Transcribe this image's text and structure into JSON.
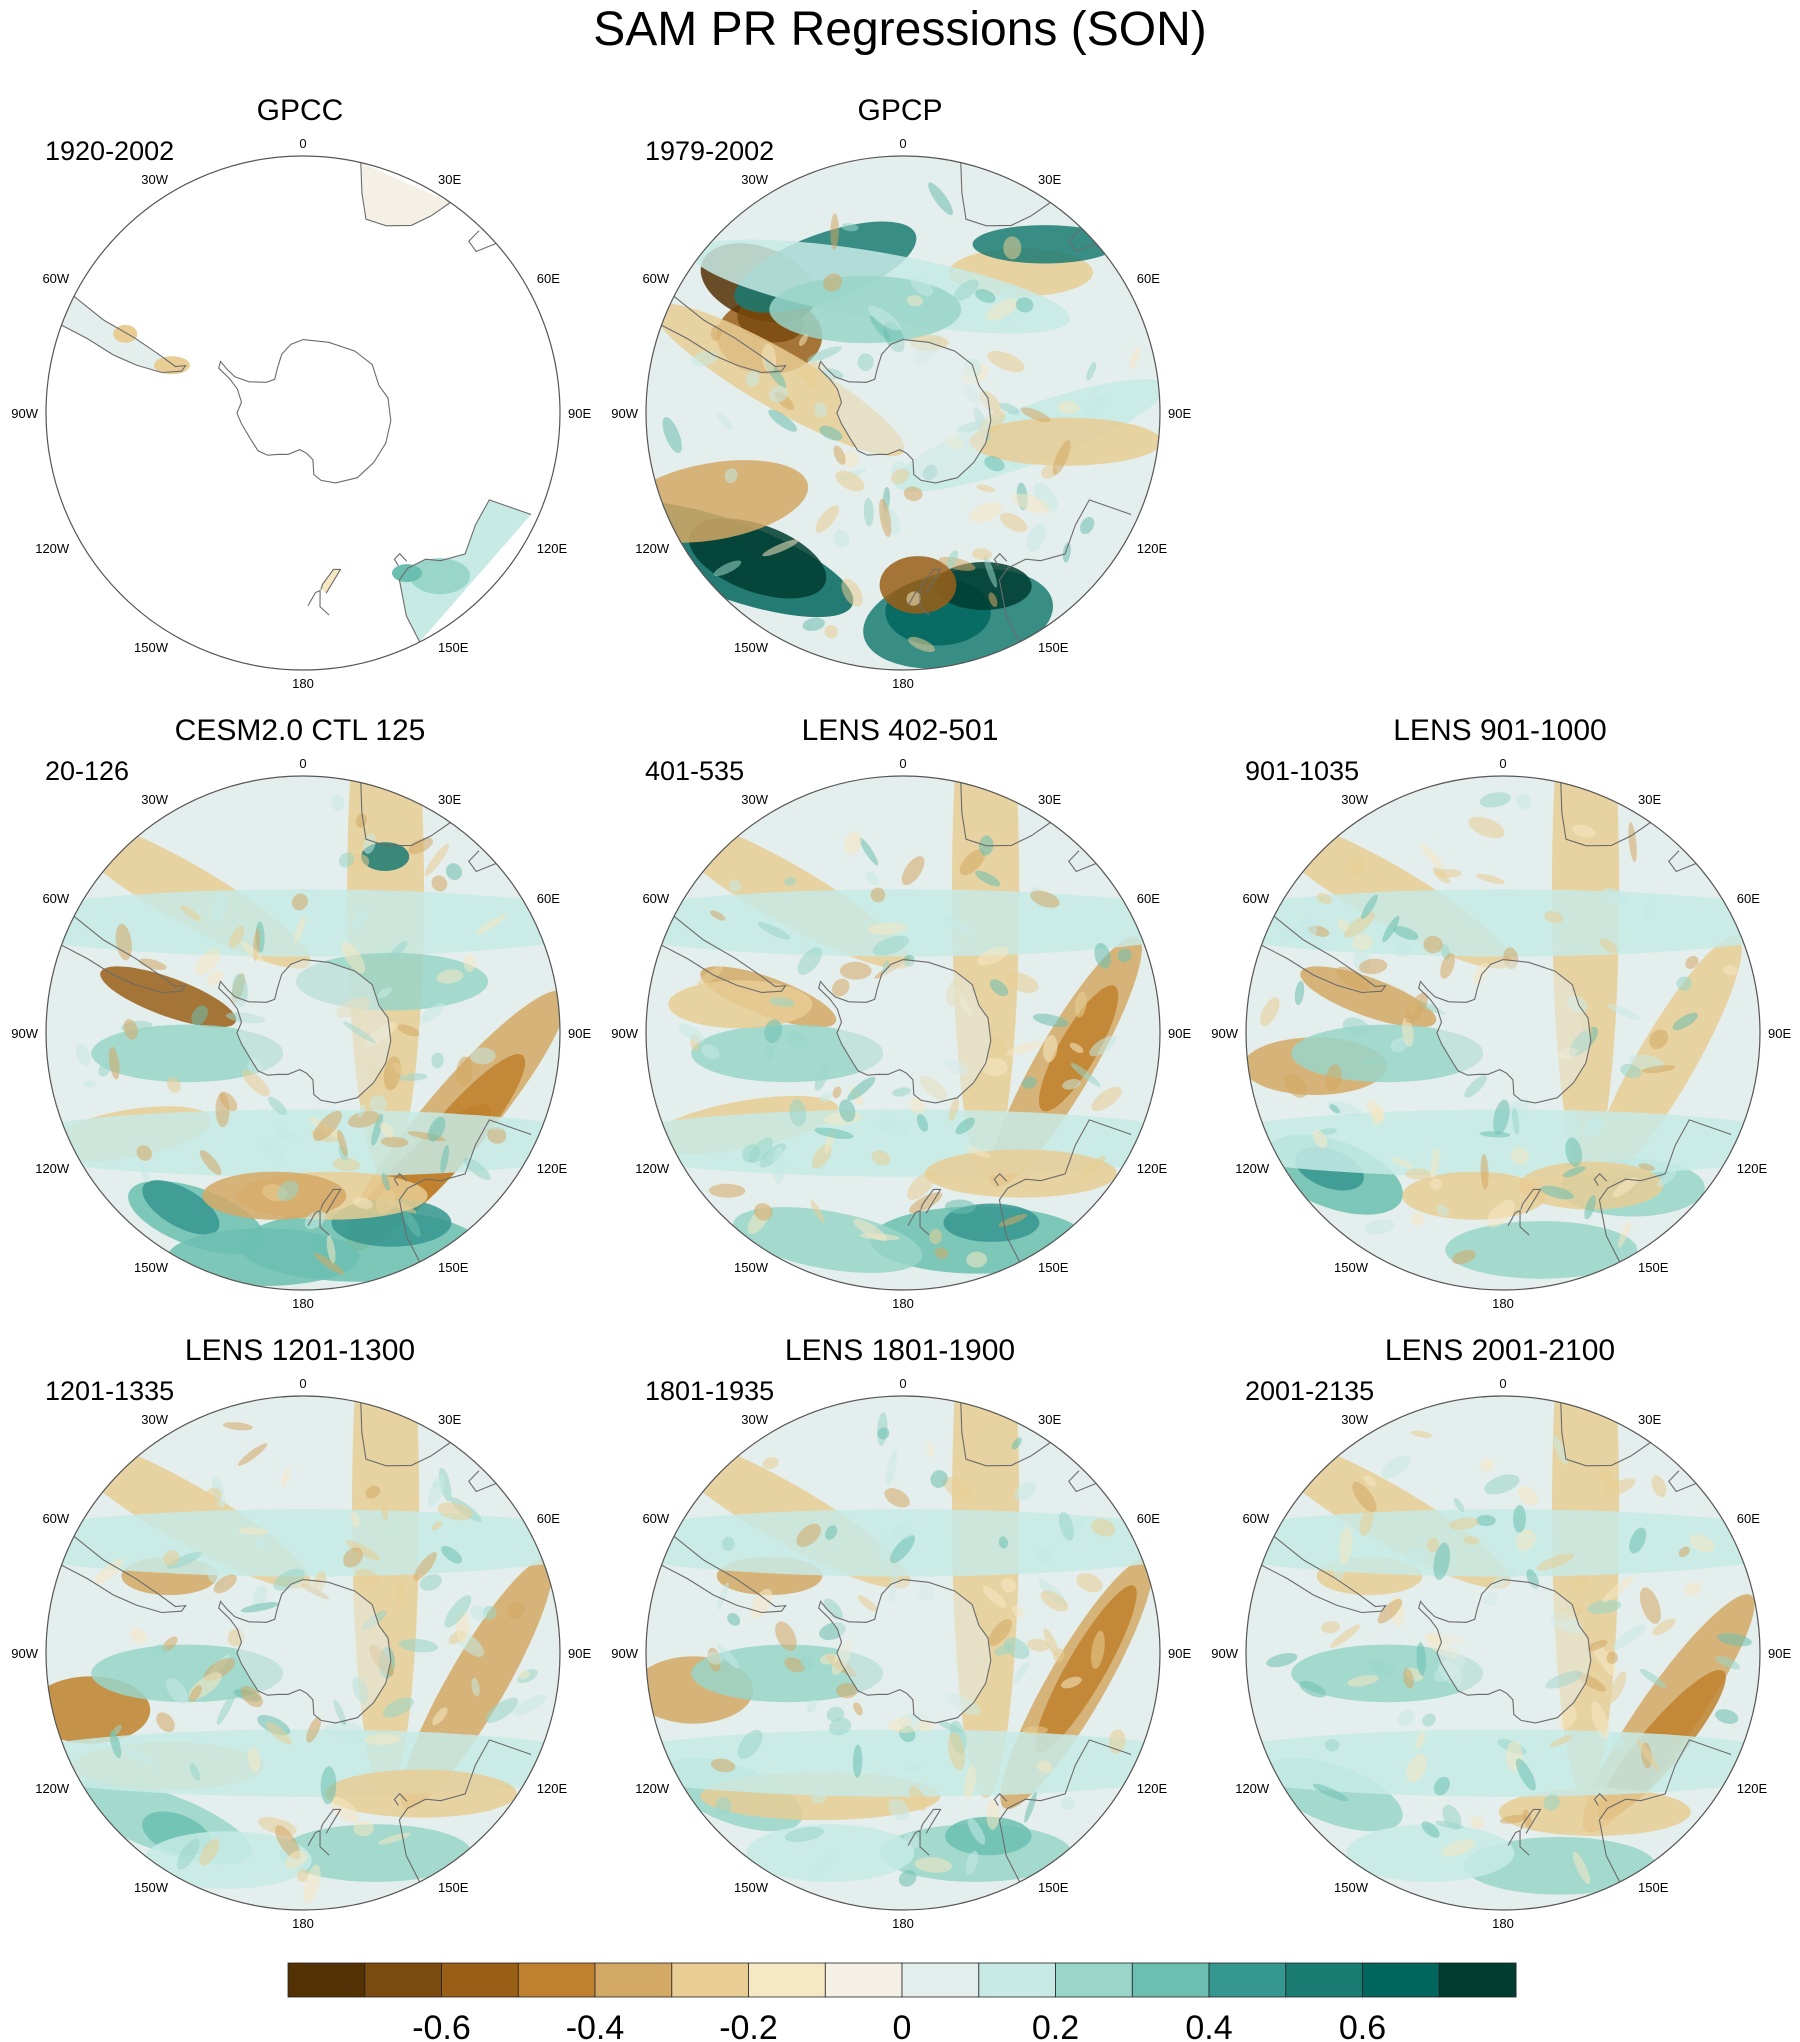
{
  "title": "SAM PR Regressions (SON)",
  "chart_data": {
    "type": "polar-contour-map",
    "projection": "south-polar-stereographic",
    "longitude_labels": [
      "0",
      "30E",
      "60E",
      "90E",
      "120E",
      "150E",
      "180",
      "150W",
      "120W",
      "90W",
      "60W",
      "30W"
    ],
    "panels": [
      {
        "id": "gpcc",
        "title": "GPCC",
        "period": "1920-2002",
        "land_only": true
      },
      {
        "id": "gpcp",
        "title": "GPCP",
        "period": "1979-2002",
        "land_only": false
      },
      {
        "id": "cesm",
        "title": "CESM2.0 CTL 125",
        "period": "20-126",
        "land_only": false
      },
      {
        "id": "lens402",
        "title": "LENS 402-501",
        "period": "401-535",
        "land_only": false
      },
      {
        "id": "lens901",
        "title": "LENS 901-1000",
        "period": "901-1035",
        "land_only": false
      },
      {
        "id": "lens1201",
        "title": "LENS 1201-1300",
        "period": "1201-1335",
        "land_only": false
      },
      {
        "id": "lens1801",
        "title": "LENS 1801-1900",
        "period": "1801-1935",
        "land_only": false
      },
      {
        "id": "lens2001",
        "title": "LENS 2001-2100",
        "period": "2001-2135",
        "land_only": false
      }
    ],
    "colorbar": {
      "levels": [
        -0.8,
        -0.7,
        -0.6,
        -0.5,
        -0.4,
        -0.3,
        -0.2,
        -0.1,
        0,
        0.1,
        0.2,
        0.3,
        0.4,
        0.5,
        0.6,
        0.7,
        0.8
      ],
      "tick_labels": [
        "-0.6",
        "-0.4",
        "-0.2",
        "0",
        "0.2",
        "0.4",
        "0.6"
      ],
      "tick_values": [
        -0.6,
        -0.4,
        -0.2,
        0,
        0.2,
        0.4,
        0.6
      ],
      "colors": [
        "#543005",
        "#7a4a0e",
        "#9a5f17",
        "#bf812d",
        "#d4a865",
        "#e8cd94",
        "#f6e8c3",
        "#f5f0e6",
        "#e4eeec",
        "#c7eae5",
        "#99d5c9",
        "#6bbfb0",
        "#35978f",
        "#1a7b73",
        "#01665e",
        "#003c30"
      ]
    }
  }
}
